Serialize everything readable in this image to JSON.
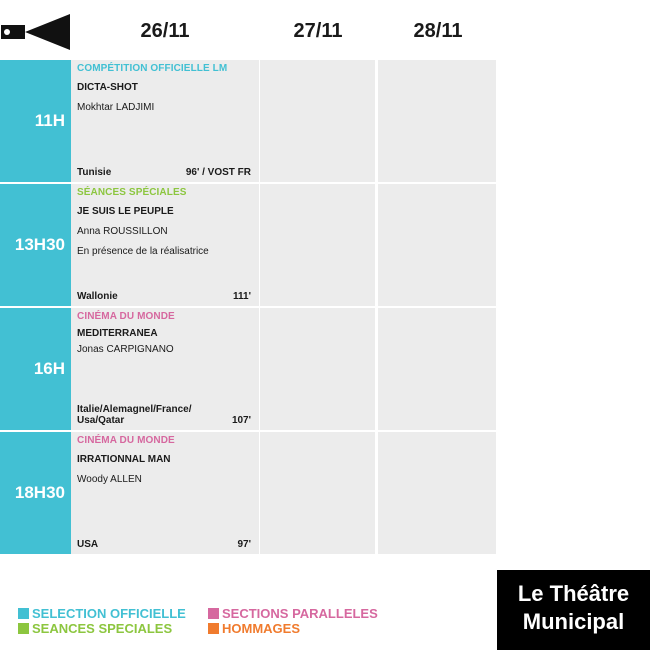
{
  "days": [
    "26/11",
    "27/11",
    "28/11"
  ],
  "colors": {
    "blue": "#42c0d3",
    "green": "#8cc63f",
    "pink": "#d6689f",
    "orange": "#f07b2e"
  },
  "slots": [
    {
      "time": "11H",
      "category": "COMPÉTITION OFFICIELLE LM",
      "title": "DICTA-SHOT",
      "director": "Mokhtar LADJIMI",
      "note": "",
      "country": "Tunisie",
      "duration": "96' / VOST FR"
    },
    {
      "time": "13H30",
      "category": "SÉANCES SPÉCIALES",
      "title": "JE SUIS LE PEUPLE",
      "director": "Anna ROUSSILLON",
      "note": "En présence de la réalisatrice",
      "country": "Wallonie",
      "duration": "111'"
    },
    {
      "time": "16H",
      "category": "CINÉMA DU MONDE",
      "title": "MEDITERRANEA",
      "director": "Jonas CARPIGNANO",
      "note": "",
      "country": "Italie/Alemagnel/France/ Usa/Qatar",
      "duration": "107'"
    },
    {
      "time": "18H30",
      "category": "CINÉMA DU MONDE",
      "title": "IRRATIONNAL MAN",
      "director": "Woody ALLEN",
      "note": "",
      "country": "USA",
      "duration": "97'"
    }
  ],
  "legend": {
    "selection": "SELECTION OFFICIELLE",
    "seances": "SEANCES SPECIALES",
    "sections": "SECTIONS PARALLELES",
    "hommages": "HOMMAGES"
  },
  "venue": {
    "line1": "Le Théâtre",
    "line2": "Municipal"
  }
}
